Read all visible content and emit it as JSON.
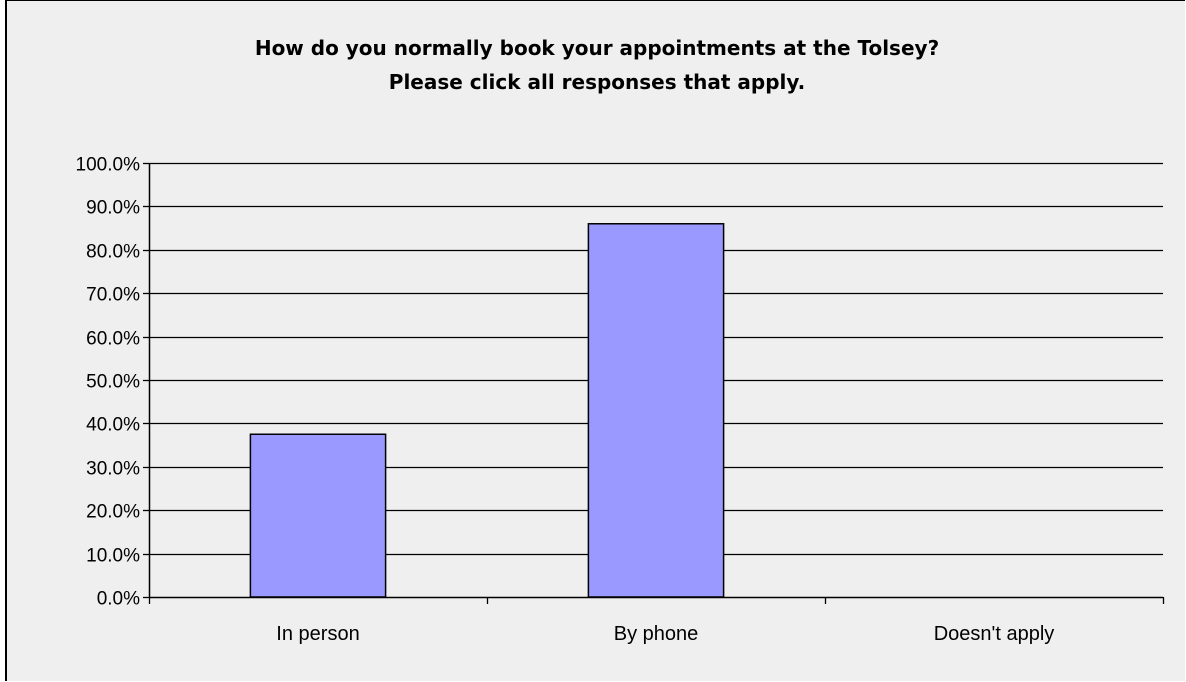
{
  "chart_data": {
    "type": "bar",
    "title": "How do you normally book your appointments at the Tolsey?",
    "subtitle": "Please click all responses that apply.",
    "categories": [
      "In person",
      "By phone",
      "Doesn't apply"
    ],
    "values": [
      37.5,
      86.0,
      0.0
    ],
    "ylim": [
      0,
      100
    ],
    "yticks": [
      0,
      10,
      20,
      30,
      40,
      50,
      60,
      70,
      80,
      90,
      100
    ],
    "ytick_labels": [
      "0.0%",
      "10.0%",
      "20.0%",
      "30.0%",
      "40.0%",
      "50.0%",
      "60.0%",
      "70.0%",
      "80.0%",
      "90.0%",
      "100.0%"
    ],
    "grid": true,
    "legend": "none",
    "bar_color": "#9999ff",
    "bar_edge_color": "#000000",
    "background_color": "#efefef"
  }
}
